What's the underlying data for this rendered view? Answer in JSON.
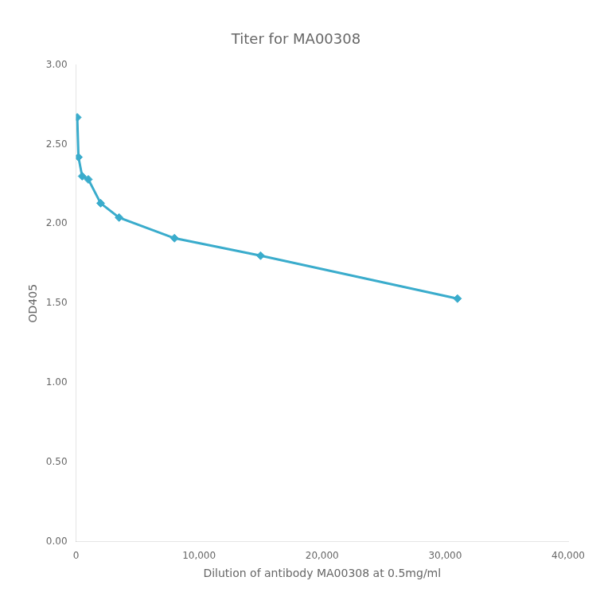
{
  "chart_data": {
    "type": "line",
    "title": "Titer for MA00308",
    "xlabel": "Dilution of antibody MA00308 at 0.5mg/ml",
    "ylabel": "OD405",
    "x": [
      100,
      200,
      500,
      1000,
      2000,
      3500,
      8000,
      15000,
      31000
    ],
    "values": [
      2.67,
      2.42,
      2.3,
      2.28,
      2.13,
      2.04,
      1.91,
      1.8,
      1.53
    ],
    "color": "#3aaccc",
    "marker": "diamond",
    "xlim": [
      0,
      40000
    ],
    "xticks": [
      0,
      {
        "value": 10000,
        "label": "10,000"
      },
      {
        "value": 20000,
        "label": "20,000"
      },
      {
        "value": 30000,
        "label": "30,000"
      },
      {
        "value": 40000,
        "label": "40,000"
      }
    ],
    "ylim": [
      0.0,
      3.0
    ],
    "yticks": [
      {
        "value": 0.0,
        "label": "0.00"
      },
      {
        "value": 0.5,
        "label": "0.50"
      },
      {
        "value": 1.0,
        "label": "1.00"
      },
      {
        "value": 1.5,
        "label": "1.50"
      },
      {
        "value": 2.0,
        "label": "2.00"
      },
      {
        "value": 2.5,
        "label": "2.50"
      },
      {
        "value": 3.0,
        "label": "3.00"
      }
    ],
    "grid": false
  }
}
